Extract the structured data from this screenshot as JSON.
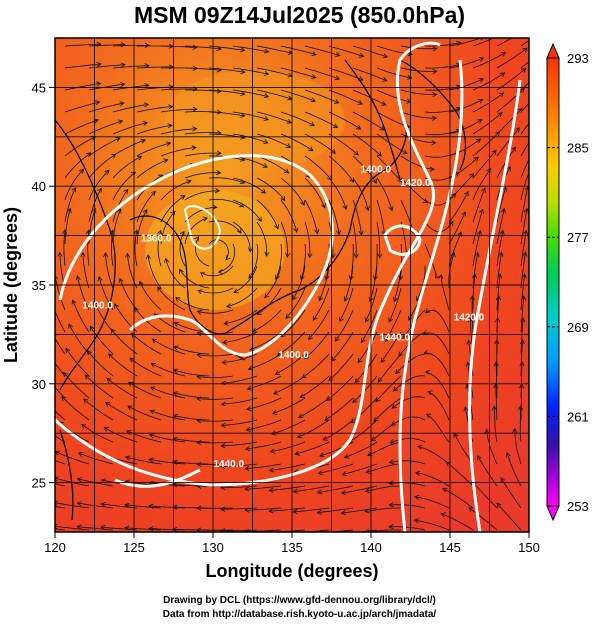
{
  "title": "MSM 09Z14Jul2025 (850.0hPa)",
  "map": {
    "xlabel": "Longitude (degrees)",
    "ylabel": "Latitude  (degrees)",
    "xlim": [
      120,
      150
    ],
    "ylim": [
      22.5,
      47.5
    ],
    "xticks": [
      "120",
      "125",
      "130",
      "135",
      "140",
      "145",
      "150"
    ],
    "yticks": [
      "25",
      "30",
      "35",
      "40",
      "45"
    ],
    "grid": true,
    "field": "temperature (K)",
    "overlay": "streamlines",
    "contour_labels": [
      {
        "text": "1400.0",
        "lon": 140.3,
        "lat": 40.7
      },
      {
        "text": "1420.0",
        "lon": 142.8,
        "lat": 40.0
      },
      {
        "text": "1360.0",
        "lon": 126.4,
        "lat": 37.2
      },
      {
        "text": "1400.0",
        "lon": 122.7,
        "lat": 33.8
      },
      {
        "text": "1400.0",
        "lon": 135.1,
        "lat": 31.3
      },
      {
        "text": "1440.0",
        "lon": 141.5,
        "lat": 32.2
      },
      {
        "text": "1420.0",
        "lon": 146.2,
        "lat": 33.2
      },
      {
        "text": "1440.0",
        "lon": 131.0,
        "lat": 25.8
      }
    ]
  },
  "colorbar": {
    "min": 253,
    "max": 293,
    "labels": [
      "293",
      "285",
      "277",
      "269",
      "261",
      "253"
    ],
    "colors": [
      "#ff00ff",
      "#8800cc",
      "#2222aa",
      "#0044ff",
      "#00aaff",
      "#00ddcc",
      "#00cc44",
      "#77dd00",
      "#dddd00",
      "#ffaa00",
      "#ff6600",
      "#ff3300"
    ]
  },
  "credits": {
    "line1": "Drawing by DCL (https://www.gfd-dennou.org/library/dcl/)",
    "line2": "Data from http://database.rish.kyoto-u.ac.jp/arch/jmadata/"
  }
}
